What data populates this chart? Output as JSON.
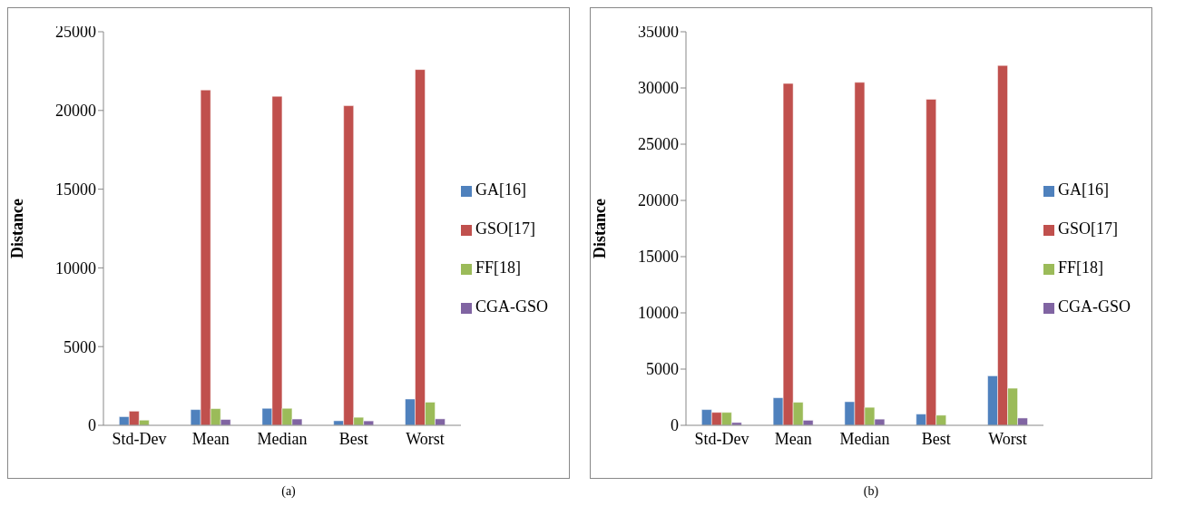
{
  "chart_data": [
    {
      "type": "bar",
      "ylabel": "Distance",
      "categories": [
        "Std-Dev",
        "Mean",
        "Median",
        "Best",
        "Worst"
      ],
      "series": [
        {
          "name": "GA[16]",
          "color": "#4f81bd",
          "values": [
            550,
            1000,
            1080,
            290,
            1670
          ]
        },
        {
          "name": "GSO[17]",
          "color": "#c0504d",
          "values": [
            900,
            21300,
            20900,
            20300,
            22600
          ]
        },
        {
          "name": "FF[18]",
          "color": "#9bbb59",
          "values": [
            330,
            1060,
            1080,
            510,
            1470
          ]
        },
        {
          "name": "CGA-GSO",
          "color": "#8064a2",
          "values": [
            null,
            370,
            400,
            280,
            410
          ]
        }
      ],
      "ylim": [
        0,
        25000
      ],
      "yticks": [
        0,
        5000,
        10000,
        15000,
        20000,
        25000
      ],
      "grid": false,
      "legend": "right",
      "annotations": [
        "(a)"
      ]
    },
    {
      "type": "bar",
      "ylabel": "Distance",
      "categories": [
        "Std-Dev",
        "Mean",
        "Median",
        "Best",
        "Worst"
      ],
      "series": [
        {
          "name": "GA[16]",
          "color": "#4f81bd",
          "values": [
            1400,
            2450,
            2100,
            1000,
            4400
          ]
        },
        {
          "name": "GSO[17]",
          "color": "#c0504d",
          "values": [
            1150,
            30400,
            30500,
            29000,
            32000
          ]
        },
        {
          "name": "FF[18]",
          "color": "#9bbb59",
          "values": [
            1150,
            2050,
            1600,
            900,
            3300
          ]
        },
        {
          "name": "CGA-GSO",
          "color": "#8064a2",
          "values": [
            250,
            450,
            550,
            0,
            650
          ]
        }
      ],
      "ylim": [
        0,
        35000
      ],
      "yticks": [
        0,
        5000,
        10000,
        15000,
        20000,
        25000,
        30000,
        35000
      ],
      "grid": false,
      "legend": "right",
      "annotations": [
        "(b)"
      ]
    }
  ]
}
